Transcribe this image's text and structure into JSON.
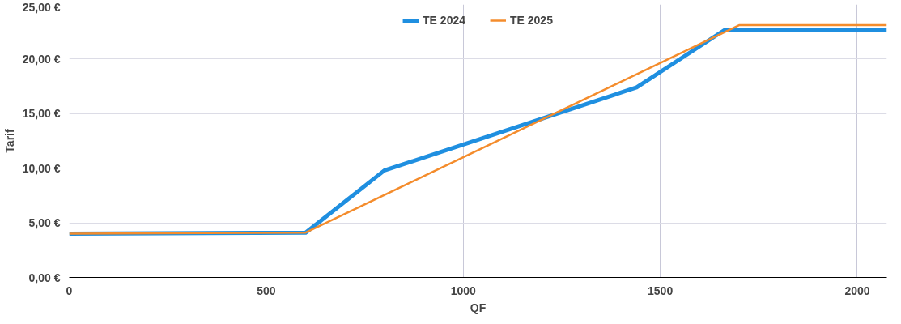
{
  "chart_data": {
    "type": "line",
    "xlabel": "QF",
    "ylabel": "Tarif",
    "xlim": [
      0,
      2075
    ],
    "xticks": [
      0,
      500,
      1000,
      1500,
      2000
    ],
    "ylim": [
      0,
      25
    ],
    "yticks": [
      {
        "value": 0,
        "label": "0,00 €"
      },
      {
        "value": 5,
        "label": "5,00 €"
      },
      {
        "value": 10,
        "label": "10,00 €"
      },
      {
        "value": 15,
        "label": "15,00 €"
      },
      {
        "value": 20,
        "label": "20,00 €"
      },
      {
        "value": 25,
        "label": "25,00 €"
      }
    ],
    "grid": true,
    "legend": "top",
    "marker": "none",
    "line_style": "solid",
    "series": [
      {
        "name": "TE 2024",
        "color": "#1f8fe0",
        "x": [
          0,
          600,
          800,
          1440,
          1665,
          2075
        ],
        "values": [
          4.0,
          4.1,
          9.8,
          17.4,
          22.7,
          22.7
        ]
      },
      {
        "name": "TE 2025",
        "color": "#f48c2c",
        "x": [
          0,
          600,
          1700,
          2075
        ],
        "values": [
          4.0,
          4.1,
          23.1,
          23.1
        ]
      }
    ]
  }
}
